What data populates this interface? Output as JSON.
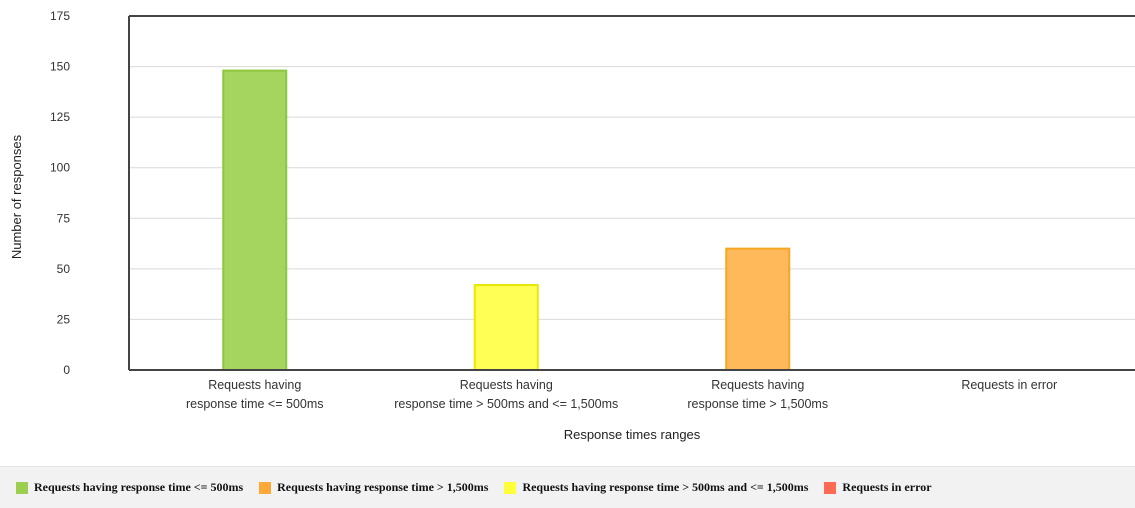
{
  "chart_data": {
    "type": "bar",
    "xlabel": "Response times ranges",
    "ylabel": "Number of responses",
    "ylim": [
      0,
      175
    ],
    "yticks": [
      "0",
      "25",
      "50",
      "75",
      "100",
      "125",
      "150",
      "175"
    ],
    "grid": true,
    "categories": [
      [
        "Requests having",
        "response time <= 500ms"
      ],
      [
        "Requests having",
        "response time > 500ms and <= 1,500ms"
      ],
      [
        "Requests having",
        "response time > 1,500ms"
      ],
      [
        "Requests in error"
      ]
    ],
    "values": [
      148,
      42,
      60,
      0
    ],
    "colors": [
      "#a5d55e",
      "#ffff55",
      "#ffb85a",
      "#ff6b5a"
    ],
    "edge_colors": [
      "#8dc63f",
      "#e8e800",
      "#f5a623",
      "#e05040"
    ]
  },
  "legend": {
    "placement": "bottom",
    "items": [
      {
        "label": "Requests having response time <= 500ms",
        "color": "#9ccf4f"
      },
      {
        "label": "Requests having response time > 1,500ms",
        "color": "#ffa83a"
      },
      {
        "label": "Requests having response time > 500ms and <= 1,500ms",
        "color": "#ffff3a"
      },
      {
        "label": "Requests in error",
        "color": "#ff6a55"
      }
    ]
  }
}
